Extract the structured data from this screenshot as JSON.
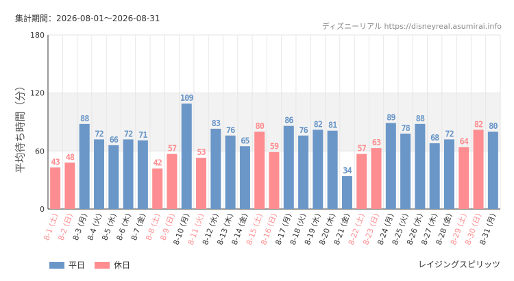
{
  "header": {
    "period": "集計期間：2026-08-01～2026-08-31",
    "site": "ディズニーリアル https://disneyreal.asumirai.info"
  },
  "attraction": "レイジングスピリッツ",
  "colors": {
    "weekday": "#6a97c8",
    "holiday": "#fd8d90",
    "band": "#f2f2f2",
    "grid": "#e6e6e6"
  },
  "chart_data": {
    "type": "bar",
    "ylabel": "平均待ち時間（分）",
    "ylim": [
      0,
      180
    ],
    "yticks": [
      0,
      60,
      120,
      180
    ],
    "band": [
      60,
      120
    ],
    "legend": [
      {
        "name": "平日",
        "key": "weekday"
      },
      {
        "name": "休日",
        "key": "holiday"
      }
    ],
    "categories": [
      "8-1 (土)",
      "8-2 (日)",
      "8-3 (月)",
      "8-4 (火)",
      "8-5 (水)",
      "8-6 (木)",
      "8-7 (金)",
      "8-8 (土)",
      "8-9 (日)",
      "8-10 (月)",
      "8-11 (火)",
      "8-12 (水)",
      "8-13 (木)",
      "8-14 (金)",
      "8-15 (土)",
      "8-16 (日)",
      "8-17 (月)",
      "8-18 (火)",
      "8-19 (水)",
      "8-20 (木)",
      "8-21 (金)",
      "8-22 (土)",
      "8-23 (日)",
      "8-24 (月)",
      "8-25 (火)",
      "8-26 (水)",
      "8-27 (木)",
      "8-28 (金)",
      "8-29 (土)",
      "8-30 (日)",
      "8-31 (月)"
    ],
    "values": [
      43,
      48,
      88,
      72,
      66,
      72,
      71,
      42,
      57,
      109,
      53,
      83,
      76,
      65,
      80,
      59,
      86,
      76,
      82,
      81,
      34,
      57,
      63,
      89,
      78,
      88,
      68,
      72,
      64,
      82,
      80
    ],
    "holiday": [
      true,
      true,
      false,
      false,
      false,
      false,
      false,
      true,
      true,
      false,
      true,
      false,
      false,
      false,
      true,
      true,
      false,
      false,
      false,
      false,
      false,
      true,
      true,
      false,
      false,
      false,
      false,
      false,
      true,
      true,
      false
    ]
  }
}
